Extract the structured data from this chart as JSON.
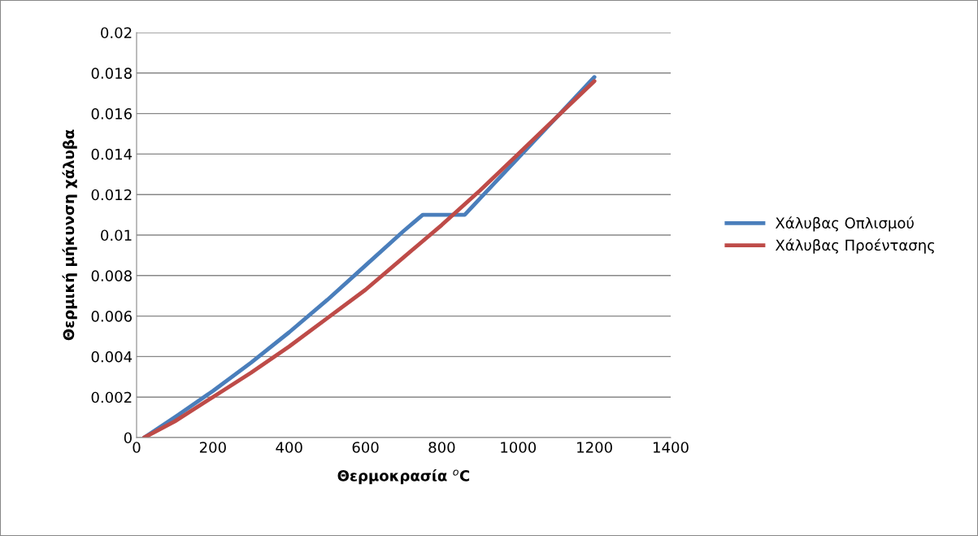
{
  "chart_data": {
    "type": "line",
    "xlabel": "Θερμοκρασία $^{o}$C",
    "ylabel": "Θερμική μήκυνση χάλυβα",
    "series": [
      {
        "name": "Χάλυβας Οπλισμού",
        "color": "#4a7ebb",
        "x": [
          20,
          100,
          200,
          300,
          400,
          500,
          600,
          700,
          750,
          860,
          900,
          1000,
          1100,
          1200
        ],
        "values": [
          0,
          0.001,
          0.0023,
          0.0037,
          0.0052,
          0.0068,
          0.0085,
          0.0102,
          0.011,
          0.011,
          0.0118,
          0.0138,
          0.0158,
          0.0178
        ]
      },
      {
        "name": "Χάλυβας Προέντασης",
        "color": "#be4b48",
        "x": [
          20,
          100,
          200,
          300,
          400,
          500,
          600,
          700,
          800,
          900,
          1000,
          1100,
          1200
        ],
        "values": [
          0,
          0.0008,
          0.002,
          0.0032,
          0.0045,
          0.0059,
          0.0073,
          0.0089,
          0.0105,
          0.0122,
          0.014,
          0.0158,
          0.0176
        ]
      }
    ],
    "xlim": [
      0,
      1400
    ],
    "xticks": [
      0,
      200,
      400,
      600,
      800,
      1000,
      1200,
      1400
    ],
    "ylim": [
      0,
      0.02
    ],
    "yticks": [
      0,
      0.002,
      0.004,
      0.006,
      0.008,
      0.01,
      0.012,
      0.014,
      0.016,
      0.018,
      0.02
    ],
    "grid": "y",
    "legend": "right",
    "marker": "none",
    "line_style": "solid"
  }
}
